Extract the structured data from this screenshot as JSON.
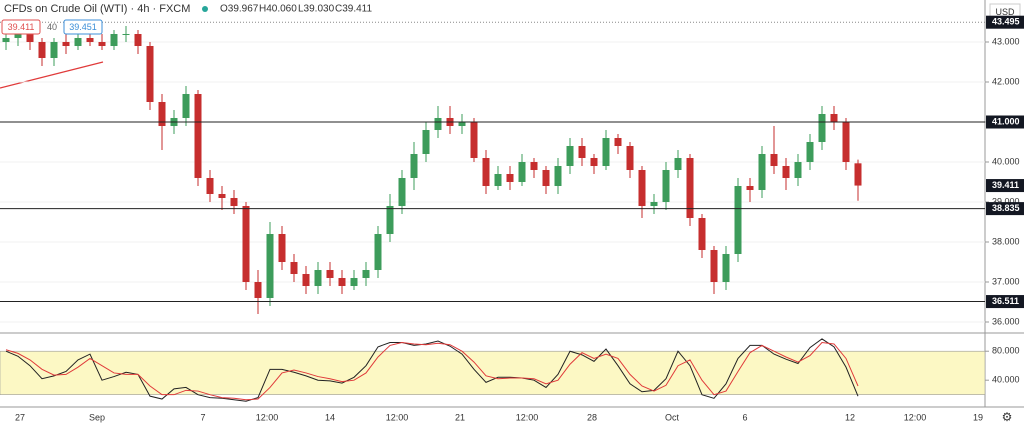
{
  "header": {
    "title": "CFDs on Crude Oil (WTI) · 4h · FXCM",
    "open": "O39.967",
    "high": "H40.060",
    "low": "L39.030",
    "close": "C39.411",
    "bid": "39.411",
    "spread": "40",
    "ask": "39.451"
  },
  "chart_data": [
    {
      "type": "candlestick",
      "currency": "USD",
      "up_color": "#3d9c5b",
      "down_color": "#c62e2e",
      "open": [
        43.0,
        43.1,
        43.2,
        43.0,
        42.6,
        43.0,
        42.9,
        43.1,
        43.0,
        42.9,
        43.2,
        43.2,
        42.9,
        41.5,
        40.9,
        41.1,
        41.7,
        39.6,
        39.2,
        39.1,
        38.9,
        37.0,
        36.6,
        38.2,
        37.5,
        37.2,
        36.9,
        37.3,
        37.1,
        36.9,
        37.1,
        37.3,
        38.2,
        38.9,
        39.6,
        40.2,
        40.8,
        41.1,
        40.9,
        41.0,
        40.1,
        39.4,
        39.7,
        39.5,
        40.0,
        39.8,
        39.4,
        39.9,
        40.4,
        40.1,
        39.9,
        40.6,
        40.4,
        39.8,
        38.9,
        39.0,
        39.8,
        40.1,
        38.6,
        37.8,
        37.0,
        37.7,
        39.4,
        39.3,
        40.2,
        39.9,
        39.6,
        40.0,
        40.5,
        41.2,
        41.0,
        39.967
      ],
      "high": [
        43.3,
        43.4,
        43.4,
        43.1,
        43.1,
        43.2,
        43.2,
        43.3,
        43.2,
        43.3,
        43.4,
        43.3,
        43.0,
        41.7,
        41.3,
        41.9,
        41.8,
        39.8,
        39.4,
        39.3,
        39.0,
        37.3,
        38.5,
        38.4,
        37.7,
        37.4,
        37.5,
        37.5,
        37.3,
        37.3,
        37.5,
        38.4,
        39.2,
        39.8,
        40.5,
        41.0,
        41.4,
        41.4,
        41.2,
        41.1,
        40.3,
        39.9,
        39.9,
        40.2,
        40.1,
        39.9,
        40.1,
        40.6,
        40.6,
        40.2,
        40.8,
        40.7,
        40.5,
        39.9,
        39.2,
        40.0,
        40.3,
        40.2,
        38.7,
        37.9,
        37.9,
        39.6,
        39.6,
        40.4,
        40.9,
        40.1,
        40.2,
        40.7,
        41.4,
        41.4,
        41.1,
        40.06
      ],
      "low": [
        42.8,
        42.9,
        42.8,
        42.4,
        42.4,
        42.7,
        42.8,
        42.9,
        42.8,
        42.8,
        43.0,
        42.7,
        41.3,
        40.3,
        40.7,
        40.9,
        39.4,
        39.0,
        38.8,
        38.7,
        36.8,
        36.2,
        36.4,
        37.3,
        37.0,
        36.7,
        36.7,
        36.9,
        36.7,
        36.8,
        36.9,
        37.1,
        38.0,
        38.7,
        39.3,
        40.0,
        40.6,
        40.7,
        40.7,
        40.0,
        39.2,
        39.3,
        39.3,
        39.4,
        39.6,
        39.2,
        39.2,
        39.7,
        39.9,
        39.7,
        39.8,
        40.2,
        39.6,
        38.6,
        38.7,
        38.8,
        39.6,
        38.4,
        37.6,
        36.7,
        36.8,
        37.5,
        39.0,
        39.1,
        39.7,
        39.3,
        39.4,
        39.8,
        40.3,
        40.8,
        39.8,
        39.03
      ],
      "close": [
        43.1,
        43.2,
        43.0,
        42.6,
        43.0,
        42.9,
        43.1,
        43.0,
        42.9,
        43.2,
        43.2,
        42.9,
        41.5,
        40.9,
        41.1,
        41.7,
        39.6,
        39.2,
        39.1,
        38.9,
        37.0,
        36.6,
        38.2,
        37.5,
        37.2,
        36.9,
        37.3,
        37.1,
        36.9,
        37.1,
        37.3,
        38.2,
        38.9,
        39.6,
        40.2,
        40.8,
        41.1,
        40.9,
        41.0,
        40.1,
        39.4,
        39.7,
        39.5,
        40.0,
        39.8,
        39.4,
        39.9,
        40.4,
        40.1,
        39.9,
        40.6,
        40.4,
        39.8,
        38.9,
        39.0,
        39.8,
        40.1,
        38.6,
        37.8,
        37.0,
        37.7,
        39.4,
        39.3,
        40.2,
        39.9,
        39.6,
        40.0,
        40.5,
        41.2,
        41.0,
        40.0,
        39.411
      ],
      "ylim": [
        35.775,
        44.05
      ],
      "yticks": [
        {
          "value": 36,
          "label": "36.000"
        },
        {
          "value": 37,
          "label": "37.000"
        },
        {
          "value": 38,
          "label": "38.000"
        },
        {
          "value": 39,
          "label": "39.000"
        },
        {
          "value": 40,
          "label": "40.000"
        },
        {
          "value": 41,
          "label": "41.000"
        },
        {
          "value": 42,
          "label": "42.000"
        },
        {
          "value": 43,
          "label": "43.000"
        }
      ],
      "levels": [
        {
          "value": 43.495,
          "label": "43.495",
          "style": "dotted"
        },
        {
          "value": 41.0,
          "label": "41.000",
          "style": "solid"
        },
        {
          "value": 39.411,
          "label": "39.411",
          "style": "none"
        },
        {
          "value": 38.835,
          "label": "38.835",
          "style": "solid"
        },
        {
          "value": 36.511,
          "label": "36.511",
          "style": "solid"
        }
      ],
      "xlabels": [
        "27",
        "Sep",
        "7",
        "12:00",
        "14",
        "12:00",
        "21",
        "12:00",
        "28",
        "Oct",
        "6",
        "12",
        "12:00",
        "19"
      ]
    },
    {
      "type": "line",
      "ylim": [
        3,
        101
      ],
      "band": [
        20,
        80
      ],
      "band_color": "#fcf8c4",
      "yticks": [
        {
          "value": 40,
          "label": "40.000"
        },
        {
          "value": 80,
          "label": "80.000"
        }
      ],
      "series": [
        {
          "color": "#222222",
          "values": [
            80,
            73,
            60,
            42,
            46,
            52,
            68,
            76,
            40,
            45,
            51,
            48,
            18,
            14,
            28,
            30,
            20,
            16,
            15,
            13,
            11,
            16,
            55,
            55,
            51,
            46,
            40,
            39,
            36,
            44,
            60,
            86,
            92,
            92,
            88,
            90,
            94,
            87,
            76,
            55,
            37,
            44,
            44,
            43,
            40,
            30,
            48,
            80,
            75,
            66,
            83,
            60,
            35,
            24,
            26,
            42,
            80,
            60,
            20,
            15,
            35,
            70,
            88,
            88,
            76,
            69,
            63,
            85,
            97,
            86,
            58,
            18
          ]
        },
        {
          "color": "#e03a3a",
          "values": [
            82,
            77,
            68,
            55,
            47,
            48,
            58,
            70,
            60,
            50,
            48,
            48,
            32,
            20,
            20,
            26,
            25,
            20,
            16,
            15,
            13,
            14,
            30,
            50,
            54,
            50,
            45,
            42,
            38,
            40,
            50,
            72,
            88,
            92,
            90,
            89,
            91,
            89,
            80,
            65,
            46,
            42,
            43,
            43,
            42,
            35,
            40,
            62,
            78,
            70,
            76,
            70,
            48,
            32,
            25,
            33,
            60,
            68,
            40,
            20,
            25,
            52,
            78,
            88,
            80,
            72,
            65,
            74,
            92,
            90,
            70,
            32
          ]
        }
      ]
    }
  ]
}
